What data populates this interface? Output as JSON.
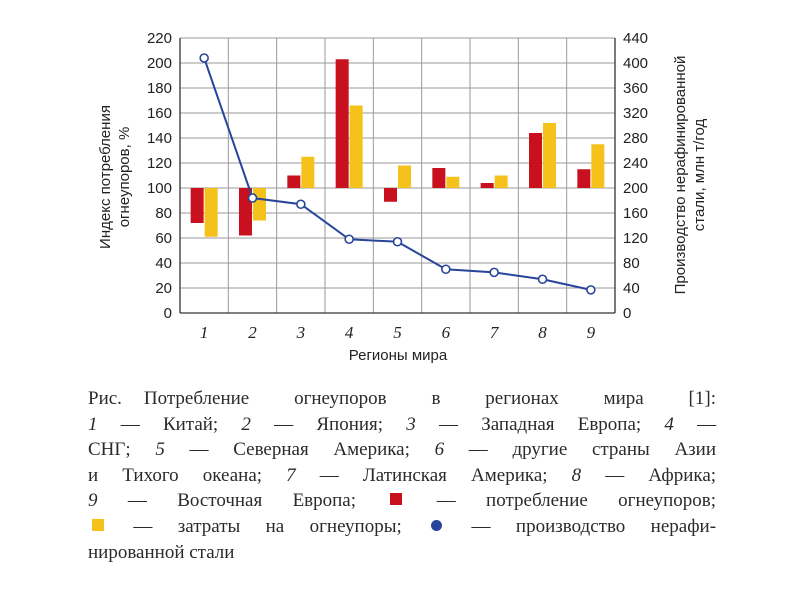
{
  "chart_data": {
    "type": "bar",
    "categories": [
      "1",
      "2",
      "3",
      "4",
      "5",
      "6",
      "7",
      "8",
      "9"
    ],
    "xlabel": "Регионы мира",
    "ylabel_left": "Индекс потребления огнеупоров, %",
    "ylabel_left_lines": [
      "Индекс потребления",
      "огнеупоров, %"
    ],
    "ylabel_right": "Производство нерафинированной стали, млн т/год",
    "ylabel_right_lines": [
      "Производство нерафинированной",
      "стали, млн т/год"
    ],
    "ylim_left": [
      0,
      220
    ],
    "ylim_right": [
      0,
      440
    ],
    "yticks_left": [
      0,
      20,
      40,
      60,
      80,
      100,
      120,
      140,
      160,
      180,
      200,
      220
    ],
    "yticks_right": [
      0,
      40,
      80,
      120,
      160,
      200,
      240,
      280,
      320,
      360,
      400,
      440
    ],
    "bar_baseline": 100,
    "grid": true,
    "series": [
      {
        "name": "потребление огнеупоров",
        "kind": "bar",
        "axis": "left",
        "color": "#c8101e",
        "values": [
          72,
          62,
          110,
          203,
          89,
          116,
          104,
          144,
          115
        ]
      },
      {
        "name": "затраты на огнеупоры",
        "kind": "bar",
        "axis": "left",
        "color": "#f5c21b",
        "values": [
          61,
          74,
          125,
          166,
          118,
          109,
          110,
          152,
          135
        ]
      },
      {
        "name": "производство нерафинированной стали",
        "kind": "line",
        "axis": "right",
        "color": "#27459a",
        "values": [
          408,
          184,
          174,
          118,
          114,
          70,
          65,
          54,
          37
        ]
      }
    ]
  },
  "caption": {
    "fig_label": "Рис.",
    "title": "Потребление огнеупоров в регионах мира [1]:",
    "legend_items": [
      {
        "num": "1",
        "text": "Китай;"
      },
      {
        "num": "2",
        "text": "Япония;"
      },
      {
        "num": "3",
        "text": "Западная Европа;"
      },
      {
        "num": "4",
        "text": "СНГ;"
      },
      {
        "num": "5",
        "text": "Северная Америка;"
      },
      {
        "num": "6",
        "text": "другие страны Азии и Тихого океана;"
      },
      {
        "num": "7",
        "text": "Латинская Америка;"
      },
      {
        "num": "8",
        "text": "Африка;"
      },
      {
        "num": "9",
        "text": "Восточная Европа;"
      }
    ],
    "dash": "—",
    "l2_tail": "—",
    "l3_head": "СНГ;",
    "l4_a": "и Тихого океана;",
    "l6_b": "— затраты на огнеупоры;",
    "l7": "нированной стали",
    "legend_red": "— потребление огнеупоров;",
    "legend_line_prefix": "— производство нерафи-"
  }
}
